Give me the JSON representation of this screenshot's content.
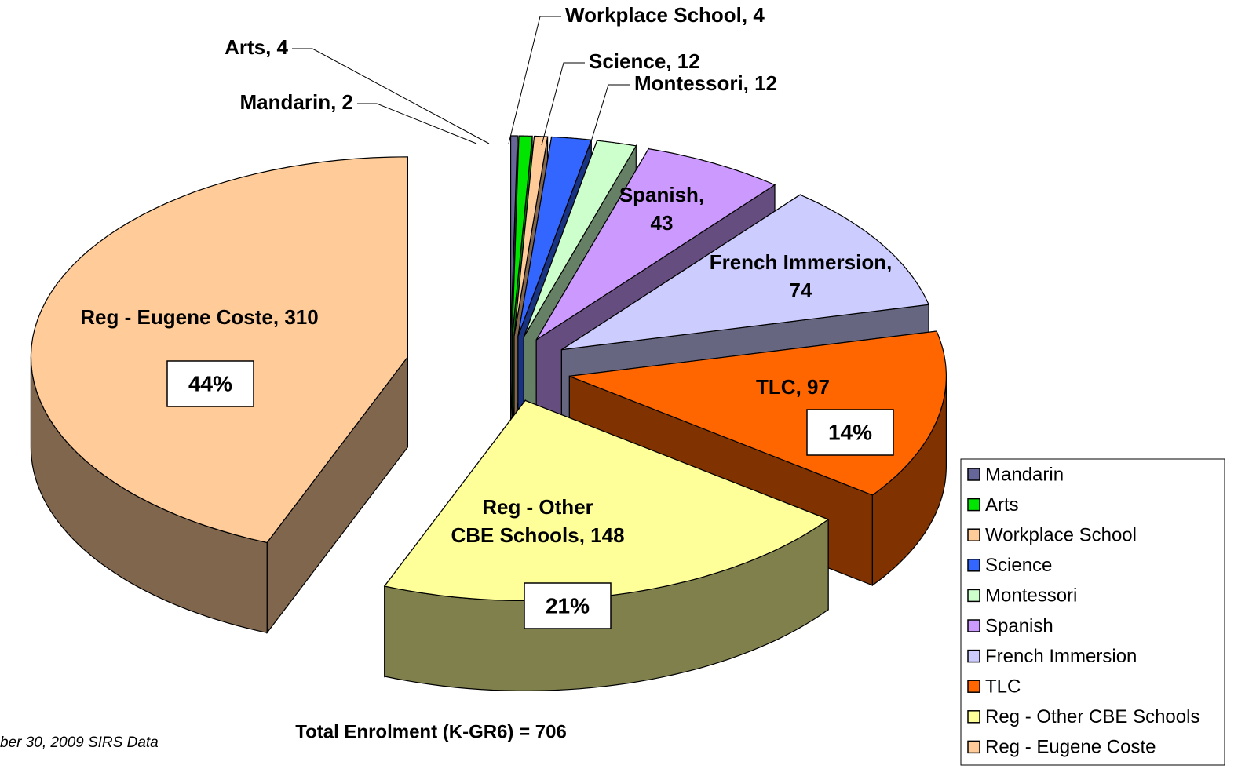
{
  "chart_data": {
    "type": "pie3d",
    "categories": [
      "Mandarin",
      "Arts",
      "Workplace School",
      "Science",
      "Montessori",
      "Spanish",
      "French Immersion",
      "TLC",
      "Reg - Other CBE Schools",
      "Reg - Eugene Coste"
    ],
    "values": [
      2,
      4,
      4,
      12,
      12,
      43,
      74,
      97,
      148,
      310
    ],
    "value_labels": [
      "Mandarin, 2",
      "Arts, 4",
      "Workplace School, 4",
      "Science, 12",
      "Montessori, 12",
      "Spanish, 43",
      "French Immersion, 74",
      "TLC, 97",
      "Reg - Other CBE Schools, 148",
      "Reg - Eugene Coste, 310"
    ],
    "percent_labels": [
      null,
      null,
      null,
      null,
      null,
      null,
      null,
      {
        "value": 14,
        "label": "14%"
      },
      {
        "value": 21,
        "label": "21%"
      },
      {
        "value": 44,
        "label": "44%"
      }
    ],
    "colors": [
      "#666699",
      "#00e600",
      "#ffcc99",
      "#3366ff",
      "#ccffcc",
      "#cc99ff",
      "#ccccff",
      "#ff6600",
      "#ffff99",
      "#ffcc99"
    ],
    "subtitle": "Total Enrolment (K-GR6) = 706",
    "source": "ber 30, 2009 SIRS Data",
    "legend": "bottom-right"
  }
}
